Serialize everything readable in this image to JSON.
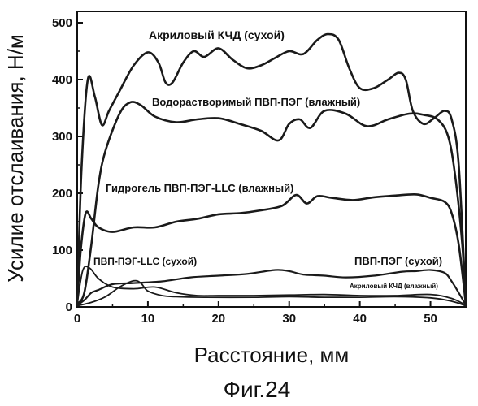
{
  "chart_data": {
    "type": "line",
    "xlabel": "Расстояние, мм",
    "ylabel": "Усилие отслаивания, Н/м",
    "caption": "Фиг.24",
    "xlim": [
      0,
      55
    ],
    "ylim": [
      0,
      520
    ],
    "x_ticks": [
      0,
      10,
      20,
      30,
      40,
      50
    ],
    "y_ticks": [
      0,
      100,
      200,
      300,
      400,
      500
    ],
    "grid": false,
    "series": [
      {
        "name": "Акриловый КЧД (сухой)",
        "x": [
          0,
          0.6,
          1.5,
          2.5,
          3.5,
          4.5,
          6,
          8,
          10,
          11.5,
          12.5,
          13.5,
          15,
          16.5,
          18,
          20,
          22,
          24,
          26,
          28,
          30,
          32,
          34,
          35.5,
          37,
          38.5,
          40,
          42,
          44,
          45.5,
          46.5,
          47.5,
          49,
          50.5,
          52,
          53,
          54,
          55
        ],
        "y": [
          5,
          240,
          400,
          370,
          320,
          345,
          380,
          425,
          448,
          430,
          395,
          395,
          430,
          450,
          440,
          455,
          435,
          420,
          425,
          438,
          450,
          445,
          470,
          480,
          470,
          420,
          385,
          385,
          400,
          412,
          400,
          345,
          322,
          332,
          345,
          330,
          250,
          5
        ]
      },
      {
        "name": "Водорастворимый ПВП-ПЭГ (влажный)",
        "x": [
          0,
          1,
          2,
          3,
          4,
          6,
          7.5,
          9,
          11,
          14,
          17,
          20,
          23,
          26,
          28.5,
          30,
          31.5,
          33,
          35,
          38,
          41,
          44,
          47,
          49,
          51,
          52.5,
          53.5,
          54.5,
          55
        ],
        "y": [
          5,
          25,
          110,
          215,
          275,
          340,
          360,
          355,
          335,
          325,
          330,
          332,
          322,
          310,
          293,
          322,
          330,
          315,
          345,
          340,
          318,
          330,
          340,
          338,
          330,
          300,
          230,
          110,
          5
        ]
      },
      {
        "name": "Гидрогель ПВП-ПЭГ-LLC (влажный)",
        "x": [
          0,
          0.5,
          1.2,
          2,
          3,
          5,
          8,
          11,
          14,
          17,
          20,
          23,
          26,
          29,
          31,
          32.5,
          34,
          36,
          39,
          42,
          45,
          48,
          50,
          52,
          53,
          54,
          55
        ],
        "y": [
          5,
          100,
          165,
          155,
          140,
          132,
          140,
          140,
          150,
          155,
          163,
          165,
          170,
          178,
          197,
          182,
          195,
          192,
          188,
          193,
          196,
          198,
          192,
          185,
          165,
          110,
          5
        ]
      },
      {
        "name": "ПВП-ПЭГ-LLC (сухой)",
        "x": [
          0,
          0.8,
          1.8,
          3,
          5,
          8,
          11,
          14,
          17,
          20,
          25,
          30,
          35,
          40,
          45,
          50,
          53,
          55
        ],
        "y": [
          5,
          65,
          68,
          50,
          35,
          32,
          35,
          25,
          20,
          20,
          20,
          21,
          22,
          20,
          20,
          22,
          15,
          3
        ]
      },
      {
        "name": "ПВП-ПЭГ (сухой)",
        "x": [
          0,
          1,
          2,
          3,
          5,
          8,
          12,
          16,
          20,
          24,
          28,
          30,
          32,
          35,
          38,
          42,
          46,
          48,
          50,
          52,
          53,
          54,
          55
        ],
        "y": [
          3,
          12,
          25,
          30,
          40,
          42,
          45,
          52,
          55,
          58,
          65,
          63,
          57,
          55,
          52,
          55,
          62,
          63,
          65,
          60,
          45,
          25,
          3
        ]
      },
      {
        "name": "Акриловый КЧД (влажный)",
        "x": [
          0,
          2,
          4,
          6,
          8,
          9,
          10,
          12,
          14,
          18,
          25,
          30,
          35,
          40,
          45,
          50,
          53,
          55
        ],
        "y": [
          2,
          8,
          18,
          35,
          46,
          42,
          28,
          20,
          18,
          17,
          17,
          18,
          17,
          17,
          18,
          16,
          10,
          2
        ]
      }
    ]
  },
  "labels": {
    "s0": "Акриловый КЧД (сухой)",
    "s1": "Водорастворимый ПВП-ПЭГ (влажный)",
    "s2": "Гидрогель ПВП-ПЭГ-LLC (влажный)",
    "s3": "ПВП-ПЭГ-LLC (сухой)",
    "s4": "ПВП-ПЭГ (сухой)",
    "s5": "Акриловый КЧД (влажный)"
  }
}
